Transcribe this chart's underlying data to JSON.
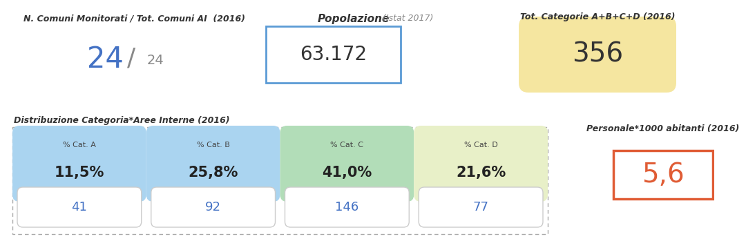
{
  "title_left": "N. Comuni Monitorati / Tot. Comuni AI  (2016)",
  "value_big": "24",
  "value_slash": "/",
  "value_small": "24",
  "title_center": "Popolazione",
  "title_center_sub": " (Istat 2017)",
  "value_center": "63.172",
  "title_right": "Tot. Categorie A+B+C+D (2016)",
  "value_right": "356",
  "title_bottom": "Distribuzione Categoria*Aree Interne (2016)",
  "categories": [
    "% Cat. A",
    "% Cat. B",
    "% Cat. C",
    "% Cat. D"
  ],
  "percentages": [
    "11,5%",
    "25,8%",
    "41,0%",
    "21,6%"
  ],
  "counts": [
    "41",
    "92",
    "146",
    "77"
  ],
  "cat_colors": [
    "#aad4f0",
    "#aad4f0",
    "#b2ddb8",
    "#e8f0c8"
  ],
  "title_personale": "Personale*1000 abitanti (2016)",
  "value_personale": "5,6",
  "bg_color": "#ffffff",
  "blue_color": "#4472c4",
  "text_dark": "#333333",
  "text_gray": "#666666",
  "orange_color": "#e05c35",
  "yellow_bg": "#f5e6a0",
  "blue_box_border": "#5b9bd5"
}
